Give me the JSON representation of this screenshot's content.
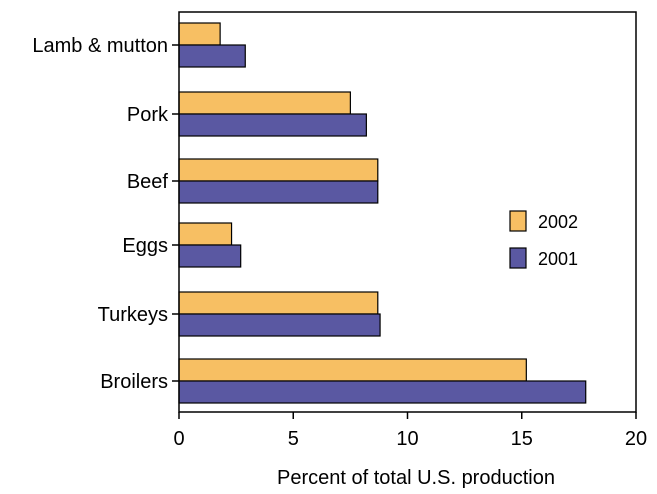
{
  "chart_data": {
    "type": "bar",
    "orientation": "horizontal",
    "categories": [
      "Lamb & mutton",
      "Pork",
      "Beef",
      "Eggs",
      "Turkeys",
      "Broilers"
    ],
    "series": [
      {
        "name": "2002",
        "values": [
          1.8,
          7.5,
          8.7,
          2.3,
          8.7,
          15.2
        ],
        "color": "#f7bf63"
      },
      {
        "name": "2001",
        "values": [
          2.9,
          8.2,
          8.7,
          2.7,
          8.8,
          17.8
        ],
        "color": "#5a58a2"
      }
    ],
    "xlabel": "Percent of total U.S. production",
    "xlim": [
      0,
      20
    ],
    "xticks": [
      0,
      5,
      10,
      15,
      20
    ],
    "grid": false,
    "legend_position": "right-center"
  }
}
